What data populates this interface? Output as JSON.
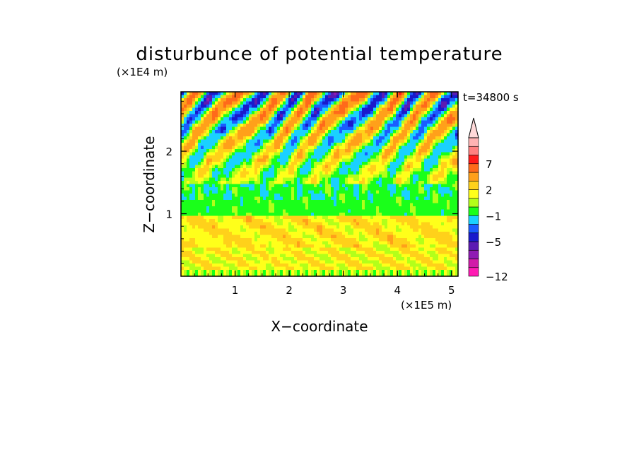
{
  "chart_data": {
    "type": "heatmap",
    "title": "disturbunce of potential temperature",
    "xlabel": "X−coordinate",
    "ylabel": "Z−coordinate",
    "x_unit": "(×1E5 m)",
    "y_unit": "(×1E4 m)",
    "time_label": "t=34800 s",
    "xlim": [
      0,
      5.12
    ],
    "ylim": [
      0,
      2.95
    ],
    "x_ticks": [
      1,
      2,
      3,
      4,
      5
    ],
    "x_tick_labels": [
      "1",
      "2",
      "3",
      "4",
      "5"
    ],
    "y_ticks": [
      1,
      2
    ],
    "y_tick_labels": [
      "1",
      "2"
    ],
    "colorbar": {
      "colors": [
        "#ff1ab3",
        "#d11aa8",
        "#8f1ab3",
        "#5c1ab3",
        "#1a1acc",
        "#1a5cff",
        "#1ad1ff",
        "#1aff1a",
        "#b3ff1a",
        "#ffff1a",
        "#ffd11a",
        "#ffa01a",
        "#ff6a1a",
        "#ff1a1a",
        "#ff7f7f",
        "#ffb3b3",
        "#ffd9d9"
      ],
      "levels": [
        -12,
        -10,
        -8,
        -6,
        -5,
        -4,
        -3,
        -1,
        0,
        1,
        2,
        3,
        5,
        7,
        8,
        9,
        11
      ],
      "tick_labels": [
        "−12",
        "−5",
        "−1",
        "2",
        "7"
      ],
      "tick_values": [
        -12,
        -5,
        -1,
        2,
        7
      ]
    }
  }
}
